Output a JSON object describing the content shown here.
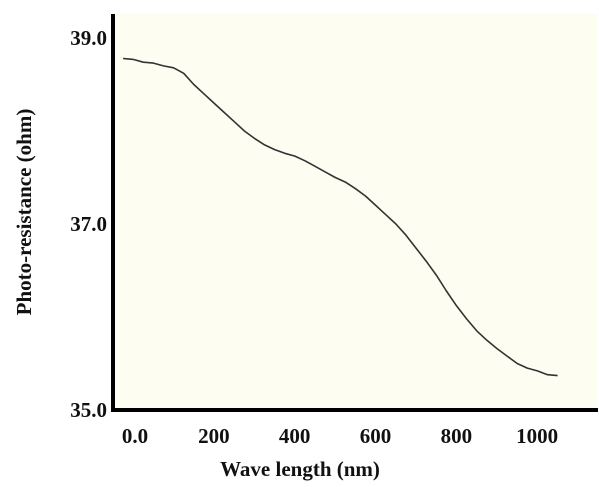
{
  "chart_data": {
    "type": "line",
    "title": "",
    "xlabel": "Wave length (nm)",
    "ylabel": "Photo-resistance (ohm)",
    "xlim": [
      0,
      1200
    ],
    "ylim": [
      35.0,
      39.0
    ],
    "x_ticks": [
      0,
      200,
      400,
      600,
      800,
      1000
    ],
    "x_tick_labels": [
      "0.0",
      "200",
      "400",
      "600",
      "800",
      "1000"
    ],
    "y_ticks": [
      35.0,
      37.0,
      39.0
    ],
    "y_tick_labels": [
      "35.0",
      "37.0",
      "39.0"
    ],
    "grid": false,
    "legend": "none",
    "colors": {
      "line": "#333333",
      "axis": "#000000",
      "background": "#fdfdf2"
    },
    "series": [
      {
        "x": [
          25,
          50,
          75,
          100,
          125,
          150,
          175,
          200,
          225,
          250,
          275,
          300,
          325,
          350,
          375,
          400,
          425,
          450,
          475,
          500,
          525,
          550,
          575,
          600,
          625,
          650,
          675,
          700,
          725,
          750,
          775,
          800,
          825,
          850,
          875,
          900,
          925,
          950,
          975,
          1000,
          1025,
          1050,
          1075,
          1100
        ],
        "y": [
          38.78,
          38.77,
          38.74,
          38.73,
          38.7,
          38.68,
          38.62,
          38.5,
          38.4,
          38.3,
          38.2,
          38.1,
          38.0,
          37.92,
          37.85,
          37.8,
          37.76,
          37.73,
          37.68,
          37.62,
          37.56,
          37.5,
          37.45,
          37.38,
          37.3,
          37.2,
          37.1,
          37.0,
          36.88,
          36.74,
          36.6,
          36.45,
          36.28,
          36.12,
          35.98,
          35.85,
          35.75,
          35.66,
          35.58,
          35.5,
          35.45,
          35.42,
          35.38,
          35.37
        ]
      }
    ]
  }
}
